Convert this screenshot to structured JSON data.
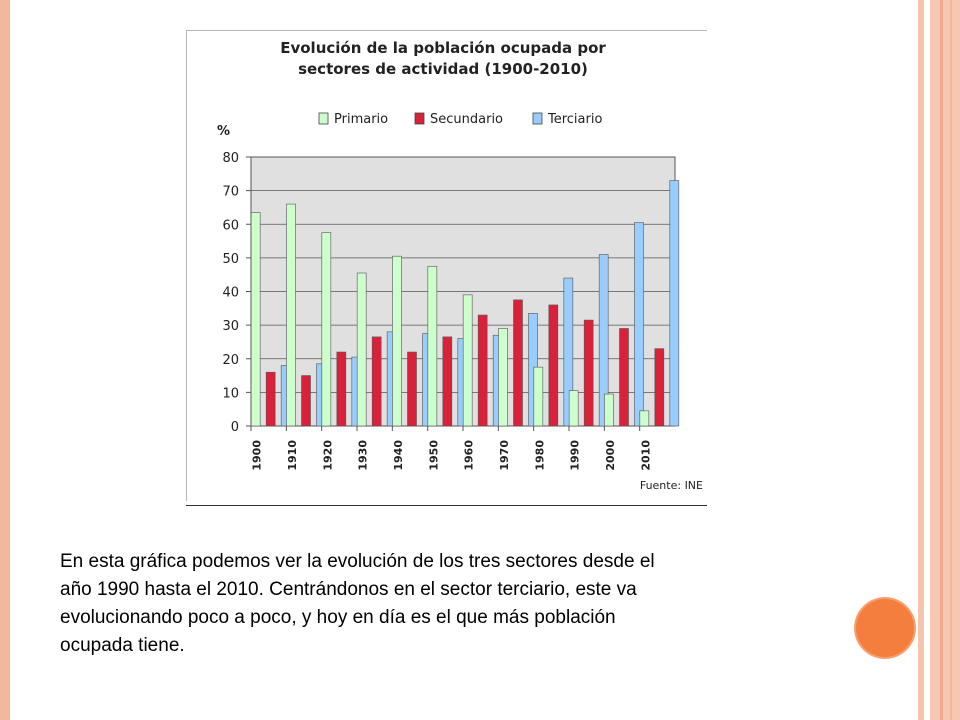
{
  "chart_data": {
    "type": "bar",
    "title": "Evolución de la población ocupada por sectores de actividad (1900-2010)",
    "title_lines": [
      "Evolución de la población ocupada por",
      "sectores de actividad (1900-2010)"
    ],
    "ylabel": "%",
    "xlabel": "",
    "ylim": [
      0,
      80
    ],
    "yticks": [
      0,
      10,
      20,
      30,
      40,
      50,
      60,
      70,
      80
    ],
    "grid": true,
    "legend_position": "top",
    "categories": [
      "1900",
      "1910",
      "1920",
      "1930",
      "1940",
      "1950",
      "1960",
      "1970",
      "1980",
      "1990",
      "2000",
      "2010"
    ],
    "series": [
      {
        "name": "Primario",
        "color": "#ccffcc",
        "values": [
          63.5,
          66,
          57.5,
          45.5,
          50.5,
          47.5,
          39,
          29,
          17.5,
          10.5,
          9.5,
          4.5
        ]
      },
      {
        "name": "Secundario",
        "color": "#d9213a",
        "values": [
          16,
          15,
          22,
          26.5,
          22,
          26.5,
          33,
          37.5,
          36,
          31.5,
          29,
          23
        ]
      },
      {
        "name": "Terciario",
        "color": "#99ccff",
        "values": [
          18,
          18.5,
          20.5,
          28,
          27.5,
          26,
          27,
          33.5,
          44,
          51,
          60.5,
          73
        ]
      }
    ],
    "source": "Fuente: INE"
  },
  "caption": {
    "lines": [
      "En esta gráfica podemos ver la evolución de los tres sectores desde el",
      "año 1990 hasta el 2010. Centrándonos en el sector terciario, este va",
      "evolucionando poco a poco, y hoy en día es el que más población",
      "ocupada tiene."
    ]
  },
  "theme": {
    "accent": "#f47e3d",
    "frame": "#f4b79d",
    "plot_bg": "#e0e0e0"
  }
}
